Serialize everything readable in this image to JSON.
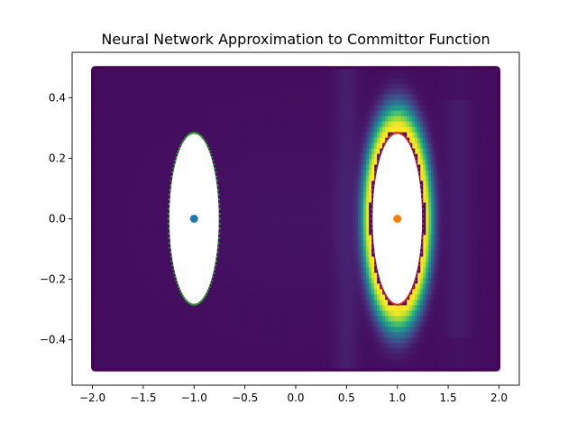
{
  "chart_data": {
    "type": "heatmap",
    "title": "Neural Network Approximation to Committor Function",
    "xlabel": "",
    "ylabel": "",
    "xlim": [
      -2.2,
      2.2
    ],
    "ylim": [
      -0.55,
      0.55
    ],
    "x_ticks": [
      -2.0,
      -1.5,
      -1.0,
      -0.5,
      0.0,
      0.5,
      1.0,
      1.5,
      2.0
    ],
    "x_tick_labels": [
      "−2.0",
      "−1.5",
      "−1.0",
      "−0.5",
      "0.0",
      "0.5",
      "1.0",
      "1.5",
      "2.0"
    ],
    "y_ticks": [
      -0.4,
      -0.2,
      0.0,
      0.2,
      0.4
    ],
    "y_tick_labels": [
      "−0.4",
      "−0.2",
      "0.0",
      "0.2",
      "0.4"
    ],
    "grid": false,
    "colormap": "viridis",
    "domain": {
      "x": [
        -2.0,
        2.0
      ],
      "y": [
        -0.5,
        0.5
      ]
    },
    "excluded_regions": [
      {
        "center": [
          -1.0,
          0.0
        ],
        "semi_axes": [
          0.27,
          0.29
        ],
        "boundary_color": "#2ca02c"
      },
      {
        "center": [
          1.0,
          0.0
        ],
        "semi_axes": [
          0.27,
          0.29
        ],
        "boundary_color": "#d62728"
      }
    ],
    "centers": [
      {
        "x": -1.0,
        "y": 0.0,
        "color": "#1f77b4"
      },
      {
        "x": 1.0,
        "y": 0.0,
        "color": "#ff7f0e"
      }
    ]
  }
}
